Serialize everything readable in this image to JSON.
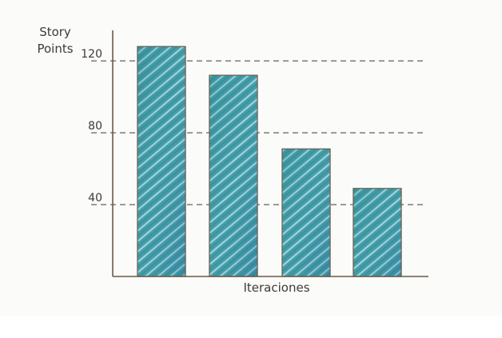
{
  "chart_data": {
    "type": "bar",
    "categories": [
      "",
      "",
      "",
      ""
    ],
    "values": [
      128,
      112,
      71,
      49
    ],
    "title": "",
    "xlabel": "Iteraciones",
    "ylabel_lines": [
      "Story",
      "Points"
    ],
    "yticks": [
      40,
      80,
      120
    ],
    "ylim": [
      0,
      137
    ],
    "grid": "dashed",
    "colors": {
      "bar_fill": "#3f9aa6",
      "bar_dark": "#2d7f8a",
      "bar_light": "#8fd0d6",
      "bar_edge": "#6b5a45",
      "axis": "#6b5a45",
      "grid": "#5a4d3f"
    }
  }
}
